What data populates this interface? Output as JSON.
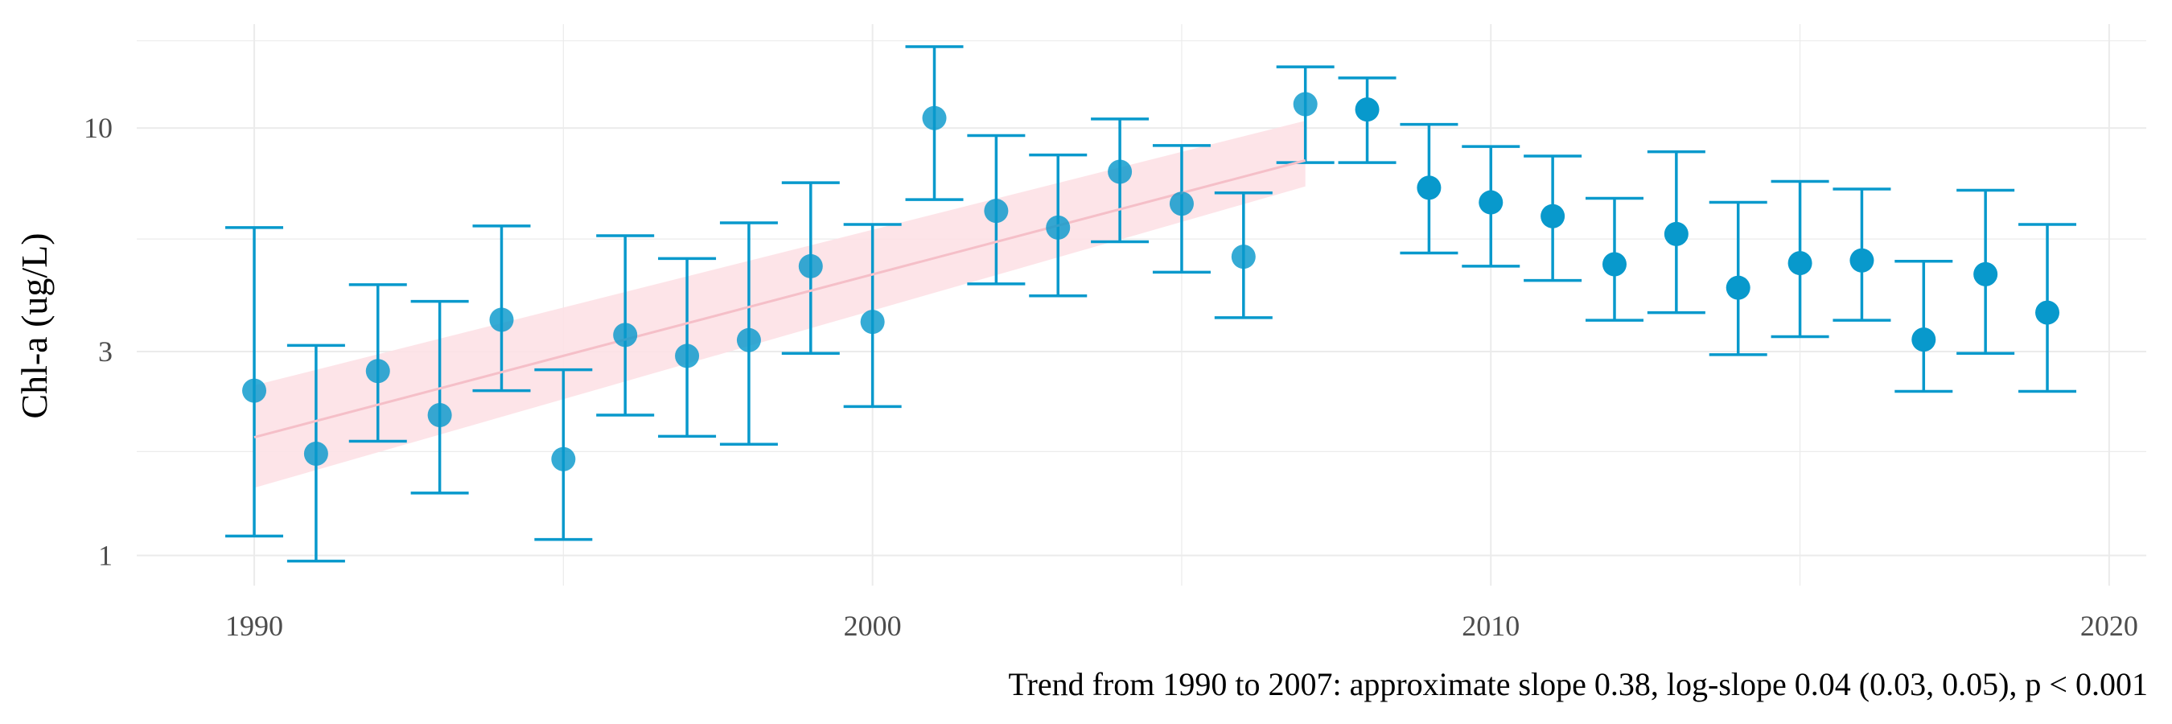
{
  "chart_data": {
    "type": "scatter",
    "ylabel": "Chl-a (ug/L)",
    "yscale": "log",
    "ylim": [
      0.85,
      17.5
    ],
    "xlim": [
      1988.1,
      2020.6
    ],
    "x_ticks": [
      1990,
      2000,
      2010,
      2020
    ],
    "x_tick_labels": [
      "1990",
      "2000",
      "2010",
      "2020"
    ],
    "y_ticks": [
      1,
      3,
      10
    ],
    "y_tick_labels": [
      "1",
      "3",
      "10"
    ],
    "y_minor_gridlines": [
      1.75,
      5.5,
      16
    ],
    "grid": true,
    "caption": "Trend from 1990 to 2007: approximate slope 0.38, log-slope 0.04 (0.03, 0.05), p < 0.001",
    "colors": {
      "points": "#0899cc",
      "trend_line": "#f5bfc8",
      "trend_band": "#fde1e6",
      "grid": "#ebebeb"
    },
    "series": [
      {
        "x": [
          1990,
          1991,
          1992,
          1993,
          1994,
          1995,
          1996,
          1997,
          1998,
          1999,
          2000,
          2001,
          2002,
          2003,
          2004,
          2005,
          2006,
          2007,
          2008,
          2009,
          2010,
          2011,
          2012,
          2013,
          2014,
          2015,
          2016,
          2017,
          2018,
          2019
        ],
        "y": [
          2.43,
          1.73,
          2.7,
          2.13,
          3.56,
          1.68,
          3.28,
          2.93,
          3.19,
          4.75,
          3.52,
          10.55,
          6.4,
          5.85,
          7.9,
          6.65,
          5.0,
          11.37,
          11.05,
          7.25,
          6.7,
          6.22,
          4.8,
          5.65,
          4.23,
          4.83,
          4.9,
          3.2,
          4.55,
          3.7
        ],
        "y_lower": [
          1.11,
          0.97,
          1.85,
          1.4,
          2.43,
          1.09,
          2.13,
          1.9,
          1.82,
          2.97,
          2.23,
          6.8,
          4.32,
          4.05,
          5.42,
          4.6,
          3.6,
          8.3,
          8.3,
          5.1,
          4.75,
          4.4,
          3.55,
          3.7,
          2.95,
          3.25,
          3.55,
          2.42,
          2.97,
          2.42
        ],
        "y_upper": [
          5.85,
          3.1,
          4.3,
          3.93,
          5.9,
          2.72,
          5.6,
          4.95,
          6.0,
          7.45,
          5.95,
          15.5,
          9.6,
          8.65,
          10.5,
          9.1,
          7.05,
          13.9,
          13.1,
          10.2,
          9.05,
          8.6,
          6.85,
          8.8,
          6.7,
          7.5,
          7.2,
          4.88,
          7.15,
          5.95
        ]
      }
    ],
    "trend": {
      "x": [
        1990,
        2007
      ],
      "y": [
        1.89,
        8.4
      ],
      "y_lower": [
        1.44,
        7.3
      ],
      "y_upper": [
        2.5,
        10.4
      ]
    }
  }
}
